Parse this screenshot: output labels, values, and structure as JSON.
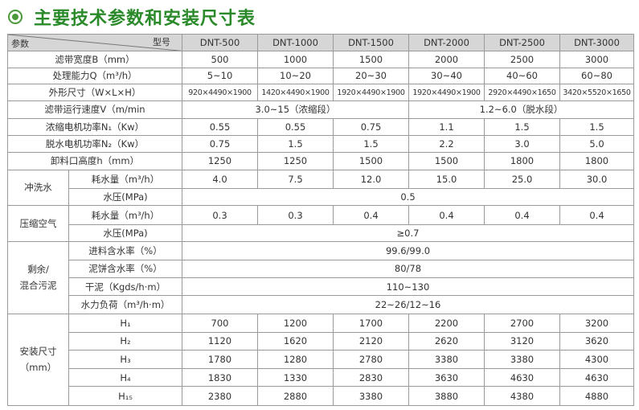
{
  "title": "主要技术参数和安装尺寸表",
  "header": {
    "param": "参数",
    "model": "型号",
    "models": [
      "DNT-500",
      "DNT-1000",
      "DNT-1500",
      "DNT-2000",
      "DNT-2500",
      "DNT-3000"
    ]
  },
  "rows": [
    {
      "label": "滤带宽度B（mm）",
      "values": [
        "500",
        "1000",
        "1500",
        "2000",
        "2500",
        "3000"
      ]
    },
    {
      "label": "处理能力Q（m³/h）",
      "values": [
        "5~10",
        "10~20",
        "20~30",
        "30~40",
        "40~60",
        "60~80"
      ]
    },
    {
      "label": "外形尺寸（W×L×H）",
      "values": [
        "920×4490×1900",
        "1420×4490×1900",
        "1920×4490×1900",
        "1920×4490×1900",
        "2920×4490×1650",
        "3420×5520×1650"
      ]
    },
    {
      "label": "滤带运行速度V（m/min",
      "left": "3.0~15（浓缩段）",
      "right": "1.2~6.0（脱水段）"
    },
    {
      "label": "浓缩电机功率N₁（Kw）",
      "values": [
        "0.55",
        "0.55",
        "0.75",
        "1.1",
        "1.5",
        "1.5"
      ]
    },
    {
      "label": "脱水电机功率N₂（Kw）",
      "values": [
        "0.75",
        "1.5",
        "1.5",
        "2.2",
        "3.0",
        "5.0"
      ]
    },
    {
      "label": "卸料口高度h（mm）",
      "values": [
        "1250",
        "1250",
        "1500",
        "1500",
        "1800",
        "1800"
      ]
    }
  ],
  "wash": {
    "group": "冲洗水",
    "consumption_label": "耗水量（m³/h）",
    "consumption": [
      "4.0",
      "7.5",
      "12.0",
      "15.0",
      "25.0",
      "30.0"
    ],
    "pressure_label": "水压(MPa)",
    "pressure": "0.5"
  },
  "air": {
    "group": "压缩空气",
    "consumption_label": "耗水量（m³/h）",
    "consumption": [
      "0.3",
      "0.3",
      "0.4",
      "0.4",
      "0.4",
      "0.4"
    ],
    "pressure_label": "水压(MPa)",
    "pressure": "≥0.7"
  },
  "sludge": {
    "group_line1": "剩余/",
    "group_line2": "混合污泥",
    "items": [
      {
        "label": "进料含水率（%）",
        "value": "99.6/99.0"
      },
      {
        "label": "泥饼含水率（%）",
        "value": "80/78"
      },
      {
        "label": "干泥（Kgds/h·m）",
        "value": "110~130"
      },
      {
        "label": "水力负荷（m³/h·m）",
        "value": "22~26/12~16"
      }
    ]
  },
  "install": {
    "group_line1": "安装尺寸",
    "group_line2": "（mm）",
    "items": [
      {
        "label": "H₁",
        "values": [
          "700",
          "1200",
          "1700",
          "2200",
          "2700",
          "3200"
        ]
      },
      {
        "label": "H₂",
        "values": [
          "1120",
          "1620",
          "2120",
          "2620",
          "3120",
          "3620"
        ]
      },
      {
        "label": "H₃",
        "values": [
          "1780",
          "1280",
          "2780",
          "3380",
          "3380",
          "4300"
        ]
      },
      {
        "label": "H₄",
        "values": [
          "1830",
          "1330",
          "2830",
          "3630",
          "4630",
          "4630"
        ]
      },
      {
        "label": "H₁₅",
        "values": [
          "2380",
          "2880",
          "3380",
          "3880",
          "4380",
          "4880"
        ]
      }
    ]
  }
}
